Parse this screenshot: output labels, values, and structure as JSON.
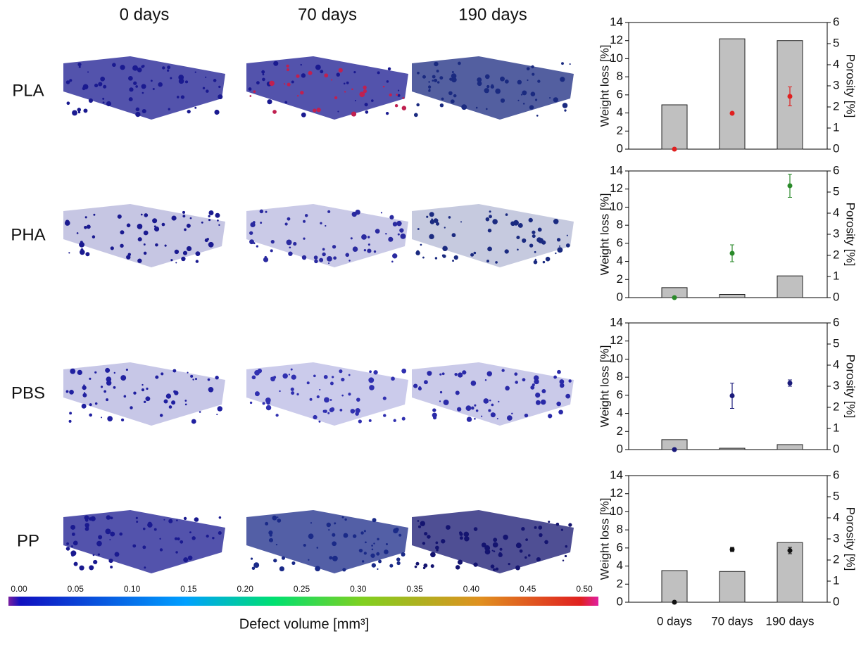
{
  "column_headers": [
    "0 days",
    "70 days",
    "190 days"
  ],
  "row_labels": [
    "PLA",
    "PHA",
    "PBS",
    "PP"
  ],
  "colorbar": {
    "ticks": [
      {
        "value": 0,
        "label": "0.00"
      },
      {
        "value": 0.05,
        "label": "0.05"
      },
      {
        "value": 0.1,
        "label": "0.10"
      },
      {
        "value": 0.15,
        "label": "0.15"
      },
      {
        "value": 0.2,
        "label": "0.20"
      },
      {
        "value": 0.25,
        "label": "0.25"
      },
      {
        "value": 0.3,
        "label": "0.30"
      },
      {
        "value": 0.35,
        "label": "0.35"
      },
      {
        "value": 0.4,
        "label": "0.40"
      },
      {
        "value": 0.45,
        "label": "0.45"
      },
      {
        "value": 0.5,
        "label": "0.50"
      }
    ],
    "lim": [
      0,
      0.5
    ],
    "label": "Defect volume [mm³]"
  },
  "chart_data": [
    {
      "type": "bar",
      "ylabel": "Weight loss [%]",
      "y2label": "Porosity [%]",
      "categories": [
        null,
        null,
        null
      ],
      "ylim": [
        0,
        14
      ],
      "yticks": [
        0,
        2,
        4,
        6,
        8,
        10,
        12,
        14
      ],
      "y2lim": [
        0,
        6
      ],
      "y2ticks": [
        0,
        1,
        2,
        3,
        4,
        5,
        6
      ],
      "series": [
        {
          "color": "#c0c0c0",
          "values": [
            4.9,
            12.2,
            12.0
          ]
        },
        {
          "color": "#e02020",
          "axis": "y2",
          "values": [
            0,
            1.7,
            2.5
          ],
          "errors": [
            0,
            0.05,
            0.45
          ]
        }
      ]
    },
    {
      "type": "bar",
      "ylabel": "Weight loss [%]",
      "y2label": "Porosity [%]",
      "categories": [
        null,
        null,
        null
      ],
      "ylim": [
        0,
        14
      ],
      "yticks": [
        0,
        2,
        4,
        6,
        8,
        10,
        12,
        14
      ],
      "y2lim": [
        0,
        6
      ],
      "y2ticks": [
        0,
        1,
        2,
        3,
        4,
        5,
        6
      ],
      "series": [
        {
          "color": "#c0c0c0",
          "values": [
            1.1,
            0.35,
            2.4
          ]
        },
        {
          "color": "#2a8a2a",
          "axis": "y2",
          "values": [
            0,
            2.1,
            5.3
          ],
          "errors": [
            0,
            0.4,
            0.55
          ]
        }
      ]
    },
    {
      "type": "bar",
      "ylabel": "Weight loss [%]",
      "y2label": "Porosity [%]",
      "categories": [
        null,
        null,
        null
      ],
      "ylim": [
        0,
        14
      ],
      "yticks": [
        0,
        2,
        4,
        6,
        8,
        10,
        12,
        14
      ],
      "y2lim": [
        0,
        6
      ],
      "y2ticks": [
        0,
        1,
        2,
        3,
        4,
        5,
        6
      ],
      "series": [
        {
          "color": "#c0c0c0",
          "values": [
            1.1,
            0.15,
            0.55
          ]
        },
        {
          "color": "#1a1a7a",
          "axis": "y2",
          "values": [
            0,
            2.55,
            3.15
          ],
          "errors": [
            0,
            0.6,
            0.15
          ]
        }
      ]
    },
    {
      "type": "bar",
      "ylabel": "Weight loss [%]",
      "y2label": "Porosity [%]",
      "categories": [
        "0 days",
        "70 days",
        "190 days"
      ],
      "ylim": [
        0,
        14
      ],
      "yticks": [
        0,
        2,
        4,
        6,
        8,
        10,
        12,
        14
      ],
      "y2lim": [
        0,
        6
      ],
      "y2ticks": [
        0,
        1,
        2,
        3,
        4,
        5,
        6
      ],
      "series": [
        {
          "color": "#c0c0c0",
          "values": [
            3.5,
            3.4,
            6.6
          ]
        },
        {
          "color": "#111111",
          "axis": "y2",
          "values": [
            0,
            2.5,
            2.45
          ],
          "errors": [
            0,
            0.1,
            0.15
          ]
        }
      ]
    }
  ]
}
